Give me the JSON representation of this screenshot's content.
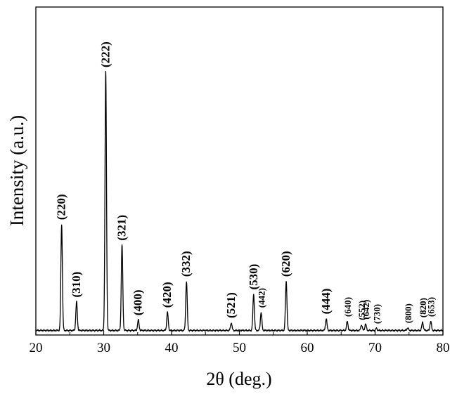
{
  "chart_data": {
    "type": "line",
    "title": "",
    "xlabel": "2θ (deg.)",
    "ylabel": "Intensity (a.u.)",
    "xlim": [
      20,
      80
    ],
    "ylim": [
      0,
      100
    ],
    "x_ticks": [
      20,
      30,
      40,
      50,
      60,
      70,
      80
    ],
    "y_ticks": [],
    "grid": false,
    "legend": "none",
    "line_color": "#000000",
    "peaks": [
      {
        "hkl": "(220)",
        "x": 23.8,
        "y": 41
      },
      {
        "hkl": "(310)",
        "x": 26.0,
        "y": 11
      },
      {
        "hkl": "(222)",
        "x": 30.3,
        "y": 100
      },
      {
        "hkl": "(321)",
        "x": 32.7,
        "y": 33
      },
      {
        "hkl": "(400)",
        "x": 35.1,
        "y": 4
      },
      {
        "hkl": "(420)",
        "x": 39.4,
        "y": 7
      },
      {
        "hkl": "(332)",
        "x": 42.2,
        "y": 19
      },
      {
        "hkl": "(521)",
        "x": 48.8,
        "y": 3
      },
      {
        "hkl": "(530)",
        "x": 52.1,
        "y": 14
      },
      {
        "hkl": "(442)",
        "x": 53.2,
        "y": 7
      },
      {
        "hkl": "(620)",
        "x": 56.9,
        "y": 19
      },
      {
        "hkl": "(444)",
        "x": 62.8,
        "y": 4.5
      },
      {
        "hkl": "(640)",
        "x": 65.9,
        "y": 3.5
      },
      {
        "hkl": "(552)",
        "x": 68.0,
        "y": 2.2
      },
      {
        "hkl": "(642)",
        "x": 68.6,
        "y": 2.5
      },
      {
        "hkl": "(730)",
        "x": 70.2,
        "y": 0.8
      },
      {
        "hkl": "(800)",
        "x": 74.8,
        "y": 1.0
      },
      {
        "hkl": "(820)",
        "x": 77.0,
        "y": 3.2
      },
      {
        "hkl": "(653)",
        "x": 78.2,
        "y": 3.5
      }
    ]
  }
}
